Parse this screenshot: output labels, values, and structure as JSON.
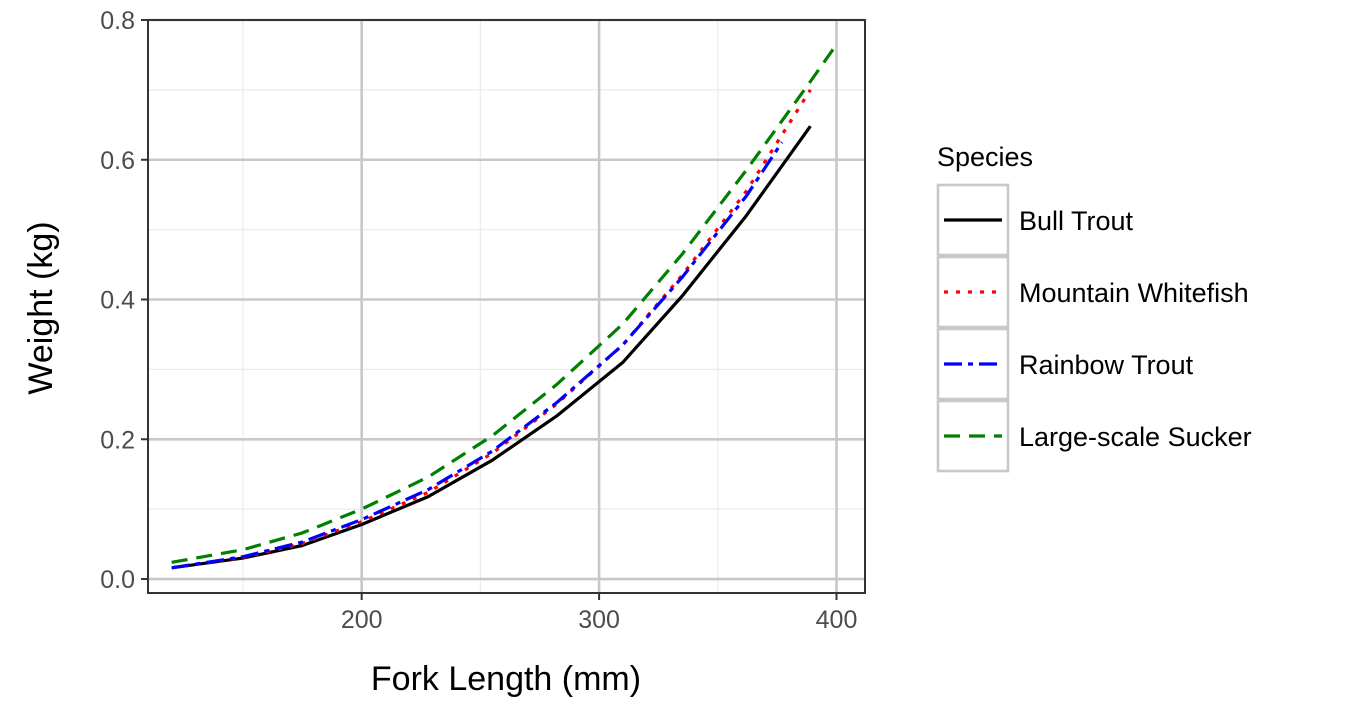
{
  "chart_data": {
    "type": "line",
    "xlabel": "Fork Length (mm)",
    "ylabel": "Weight (kg)",
    "xlim": [
      110,
      412
    ],
    "ylim": [
      -0.02,
      0.8
    ],
    "xticks": [
      200,
      300,
      400
    ],
    "xtick_labels": [
      "200",
      "300",
      "400"
    ],
    "yticks": [
      0.0,
      0.2,
      0.4,
      0.6,
      0.8
    ],
    "ytick_labels": [
      "0.0",
      "0.2",
      "0.4",
      "0.6",
      "0.8"
    ],
    "x_minor_ticks": [
      150,
      250,
      350
    ],
    "y_minor_ticks": [
      0.1,
      0.3,
      0.5,
      0.7
    ],
    "grid": true,
    "legend_position": "right",
    "legend_title": "Species",
    "series": [
      {
        "name": "Bull Trout",
        "color": "#000000",
        "dash": "solid",
        "x": [
          120,
          150,
          175,
          200,
          228,
          255,
          282,
          310,
          335,
          362,
          389
        ],
        "y": [
          0.016,
          0.03,
          0.048,
          0.078,
          0.118,
          0.17,
          0.233,
          0.31,
          0.405,
          0.52,
          0.648
        ]
      },
      {
        "name": "Mountain Whitefish",
        "color": "#ff0000",
        "dash": "dotted",
        "x": [
          120,
          150,
          175,
          200,
          228,
          255,
          282,
          310,
          335,
          362,
          389
        ],
        "y": [
          0.016,
          0.031,
          0.051,
          0.082,
          0.124,
          0.18,
          0.25,
          0.335,
          0.435,
          0.555,
          0.7
        ]
      },
      {
        "name": "Rainbow Trout",
        "color": "#0000ff",
        "dash": "longdash-dot",
        "x": [
          120,
          150,
          175,
          200,
          228,
          255,
          282,
          310,
          335,
          362,
          377
        ],
        "y": [
          0.016,
          0.032,
          0.053,
          0.085,
          0.128,
          0.183,
          0.252,
          0.335,
          0.432,
          0.548,
          0.625
        ]
      },
      {
        "name": "Large-scale Sucker",
        "color": "#007f00",
        "dash": "dashed",
        "x": [
          120,
          150,
          175,
          200,
          228,
          255,
          282,
          310,
          335,
          362,
          389,
          400
        ],
        "y": [
          0.024,
          0.042,
          0.066,
          0.1,
          0.146,
          0.205,
          0.278,
          0.365,
          0.465,
          0.585,
          0.712,
          0.765
        ]
      }
    ]
  }
}
